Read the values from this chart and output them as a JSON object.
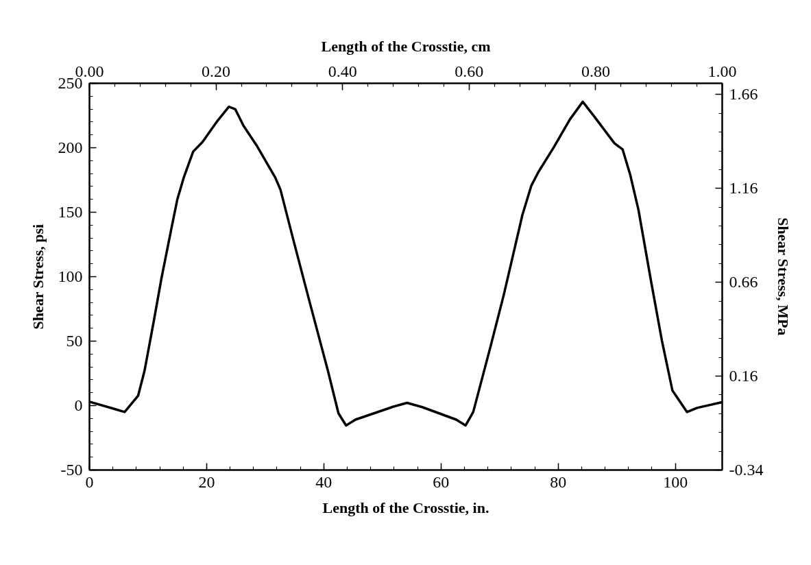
{
  "chart_data": {
    "type": "line",
    "xlabel": "Length of the Crosstie, in.",
    "x2label": "Length of the Crosstie, cm",
    "ylabel": "Shear Stress, psi",
    "y2label": "Shear Stress, MPa",
    "x": [
      0,
      4.2,
      6.0,
      8.3,
      9.4,
      11.0,
      12.3,
      14.1,
      15.0,
      16.1,
      17.7,
      19.3,
      21.7,
      23.8,
      24.9,
      26.3,
      28.5,
      31.7,
      32.6,
      34.8,
      37.5,
      40.7,
      42.5,
      43.8,
      45.4,
      51.9,
      54.2,
      56.8,
      62.6,
      64.2,
      65.5,
      68.5,
      70.7,
      73.9,
      75.4,
      76.6,
      79.3,
      82.0,
      84.2,
      86.2,
      89.6,
      91.0,
      92.3,
      93.7,
      95.9,
      97.7,
      99.5,
      102.0,
      103.7,
      108
    ],
    "series": [
      {
        "color": "#000000",
        "line_style": "solid",
        "values": [
          3,
          -2.5,
          -5,
          7.6,
          27,
          66,
          99,
          140,
          160,
          177,
          197,
          204.5,
          220,
          231.8,
          229.8,
          217,
          202,
          177,
          167.5,
          128.5,
          81.7,
          27,
          -6,
          -15.4,
          -10.9,
          -0.8,
          2.1,
          -1.2,
          -10.9,
          -15.4,
          -5,
          46.6,
          85.6,
          148,
          170.4,
          181,
          200.7,
          222,
          235.7,
          224,
          203.5,
          198.7,
          179,
          151.9,
          95.3,
          50.5,
          11.7,
          -5,
          -1.8,
          2.7
        ]
      }
    ],
    "xlim": [
      0,
      108
    ],
    "xticks": [
      0,
      20,
      40,
      60,
      80,
      100
    ],
    "x2lim": [
      0,
      1
    ],
    "x2ticks": [
      {
        "value": 0,
        "label": "0.00"
      },
      {
        "value": 0.2,
        "label": "0.20"
      },
      {
        "value": 0.4,
        "label": "0.40"
      },
      {
        "value": 0.6,
        "label": "0.60"
      },
      {
        "value": 0.8,
        "label": "0.80"
      },
      {
        "value": 1,
        "label": "1.00"
      }
    ],
    "ylim": [
      -50,
      250
    ],
    "yticks": [
      -50,
      0,
      50,
      100,
      150,
      200,
      250
    ],
    "y2lim": [
      -0.34,
      1.72
    ],
    "y2ticks": [
      -0.34,
      0.16,
      0.66,
      1.16,
      1.66
    ]
  }
}
